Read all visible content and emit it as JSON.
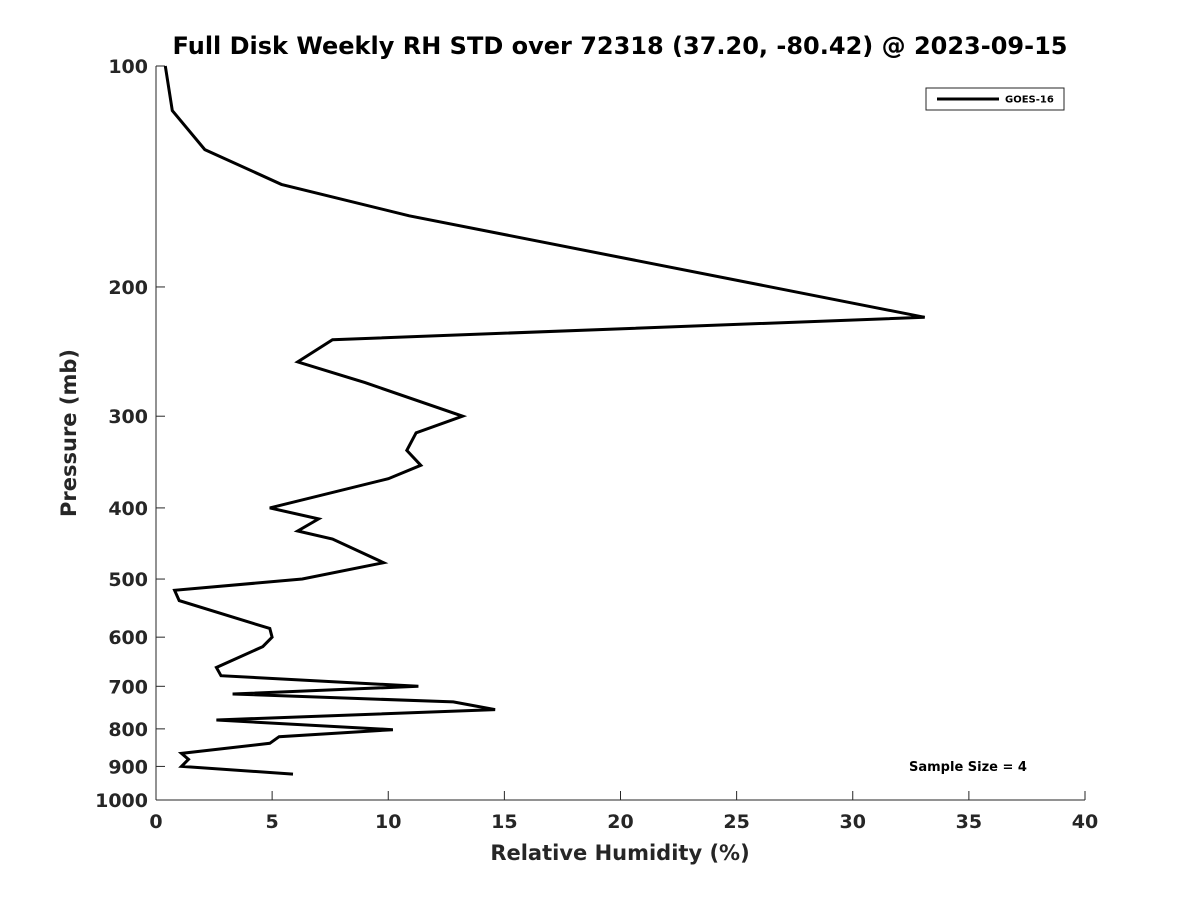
{
  "chart_data": {
    "type": "line",
    "title": "Full Disk Weekly RH STD over 72318 (37.20, -80.42) @ 2023-09-15",
    "xlabel": "Relative Humidity (%)",
    "ylabel": "Pressure (mb)",
    "xlim": [
      0,
      40
    ],
    "ylim": [
      100,
      1000
    ],
    "y_scale": "log",
    "y_reversed": true,
    "x_ticks": [
      0,
      5,
      10,
      15,
      20,
      25,
      30,
      35,
      40
    ],
    "y_ticks": [
      100,
      200,
      300,
      400,
      500,
      600,
      700,
      800,
      900,
      1000
    ],
    "grid": false,
    "legend_position": "top-right",
    "series": [
      {
        "name": "GOES-16",
        "color": "#000000",
        "points": [
          [
            0.4,
            100
          ],
          [
            0.7,
            115
          ],
          [
            2.1,
            130
          ],
          [
            5.4,
            145
          ],
          [
            10.9,
            160
          ],
          [
            33.1,
            220
          ],
          [
            7.6,
            236
          ],
          [
            6.1,
            253
          ],
          [
            9.0,
            270
          ],
          [
            13.2,
            300
          ],
          [
            11.2,
            316
          ],
          [
            10.8,
            334
          ],
          [
            11.4,
            350
          ],
          [
            10.0,
            365
          ],
          [
            4.9,
            400
          ],
          [
            7.0,
            414
          ],
          [
            6.1,
            430
          ],
          [
            7.6,
            441
          ],
          [
            9.8,
            475
          ],
          [
            6.3,
            500
          ],
          [
            0.8,
            518
          ],
          [
            1.0,
            535
          ],
          [
            4.9,
            584
          ],
          [
            5.0,
            600
          ],
          [
            4.6,
            618
          ],
          [
            2.6,
            660
          ],
          [
            2.8,
            677
          ],
          [
            11.3,
            700
          ],
          [
            3.3,
            717
          ],
          [
            12.8,
            735
          ],
          [
            14.6,
            753
          ],
          [
            2.6,
            778
          ],
          [
            10.2,
            802
          ],
          [
            5.3,
            820
          ],
          [
            4.9,
            837
          ],
          [
            1.1,
            864
          ],
          [
            1.4,
            880
          ],
          [
            1.1,
            900
          ],
          [
            5.9,
            922
          ]
        ]
      }
    ],
    "annotation": "Sample Size = 4"
  }
}
